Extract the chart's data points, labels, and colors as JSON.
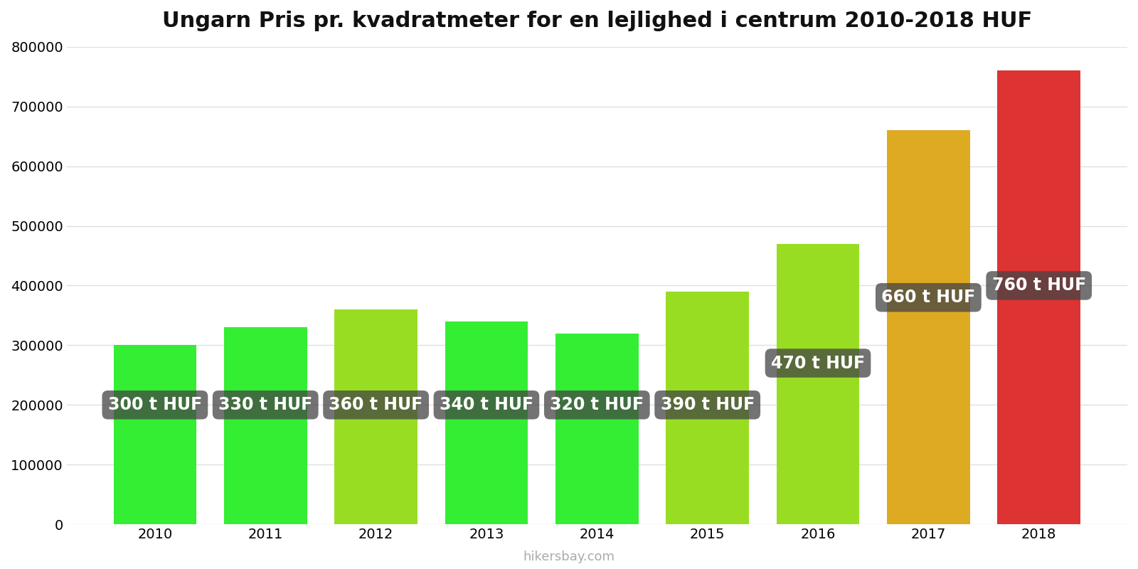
{
  "title": "Ungarn Pris pr. kvadratmeter for en lejlighed i centrum 2010-2018 HUF",
  "years": [
    2010,
    2011,
    2012,
    2013,
    2014,
    2015,
    2016,
    2017,
    2018
  ],
  "values": [
    300000,
    330000,
    360000,
    340000,
    320000,
    390000,
    470000,
    660000,
    760000
  ],
  "labels": [
    "300 t HUF",
    "330 t HUF",
    "360 t HUF",
    "340 t HUF",
    "320 t HUF",
    "390 t HUF",
    "470 t HUF",
    "660 t HUF",
    "760 t HUF"
  ],
  "bar_colors": [
    "#33ee33",
    "#33ee33",
    "#99dd22",
    "#33ee33",
    "#33ee33",
    "#99dd22",
    "#99dd22",
    "#ddaa22",
    "#dd3333"
  ],
  "label_y_positions": [
    200000,
    200000,
    200000,
    200000,
    200000,
    200000,
    270000,
    380000,
    400000
  ],
  "ylim": [
    0,
    800000
  ],
  "yticks": [
    0,
    100000,
    200000,
    300000,
    400000,
    500000,
    600000,
    700000,
    800000
  ],
  "background_color": "#ffffff",
  "grid_color": "#e0e0e0",
  "label_bg_color": "#444444",
  "label_bg_alpha": 0.75,
  "label_text_color": "#ffffff",
  "title_fontsize": 22,
  "tick_fontsize": 14,
  "label_fontsize": 17,
  "bar_width": 0.75,
  "watermark": "hikersbay.com",
  "xlim_left": 2009.2,
  "xlim_right": 2018.8
}
